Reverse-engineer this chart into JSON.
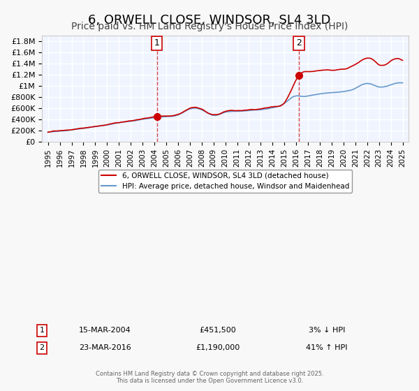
{
  "title": "6, ORWELL CLOSE, WINDSOR, SL4 3LD",
  "subtitle": "Price paid vs. HM Land Registry's House Price Index (HPI)",
  "title_fontsize": 13,
  "subtitle_fontsize": 10,
  "ylabel_ticks": [
    "£0",
    "£200K",
    "£400K",
    "£600K",
    "£800K",
    "£1M",
    "£1.2M",
    "£1.4M",
    "£1.6M",
    "£1.8M"
  ],
  "ytick_vals": [
    0,
    200000,
    400000,
    600000,
    800000,
    1000000,
    1200000,
    1400000,
    1600000,
    1800000
  ],
  "ylim": [
    0,
    1900000
  ],
  "xlim": [
    1994.5,
    2025.5
  ],
  "xticks": [
    1995,
    1996,
    1997,
    1998,
    1999,
    2000,
    2001,
    2002,
    2003,
    2004,
    2005,
    2006,
    2007,
    2008,
    2009,
    2010,
    2011,
    2012,
    2013,
    2014,
    2015,
    2016,
    2017,
    2018,
    2019,
    2020,
    2021,
    2022,
    2023,
    2024,
    2025
  ],
  "background_color": "#f0f4ff",
  "grid_color": "#ffffff",
  "line1_color": "#cc0000",
  "line2_color": "#6699cc",
  "sale1_x": 2004.21,
  "sale1_y": 451500,
  "sale1_label": "1",
  "sale2_x": 2016.23,
  "sale2_y": 1190000,
  "sale2_label": "2",
  "legend1_text": "6, ORWELL CLOSE, WINDSOR, SL4 3LD (detached house)",
  "legend2_text": "HPI: Average price, detached house, Windsor and Maidenhead",
  "annot1_num": "1",
  "annot1_date": "15-MAR-2004",
  "annot1_price": "£451,500",
  "annot1_hpi": "3% ↓ HPI",
  "annot2_num": "2",
  "annot2_date": "23-MAR-2016",
  "annot2_price": "£1,190,000",
  "annot2_hpi": "41% ↑ HPI",
  "footer": "Contains HM Land Registry data © Crown copyright and database right 2025.\nThis data is licensed under the Open Government Licence v3.0."
}
